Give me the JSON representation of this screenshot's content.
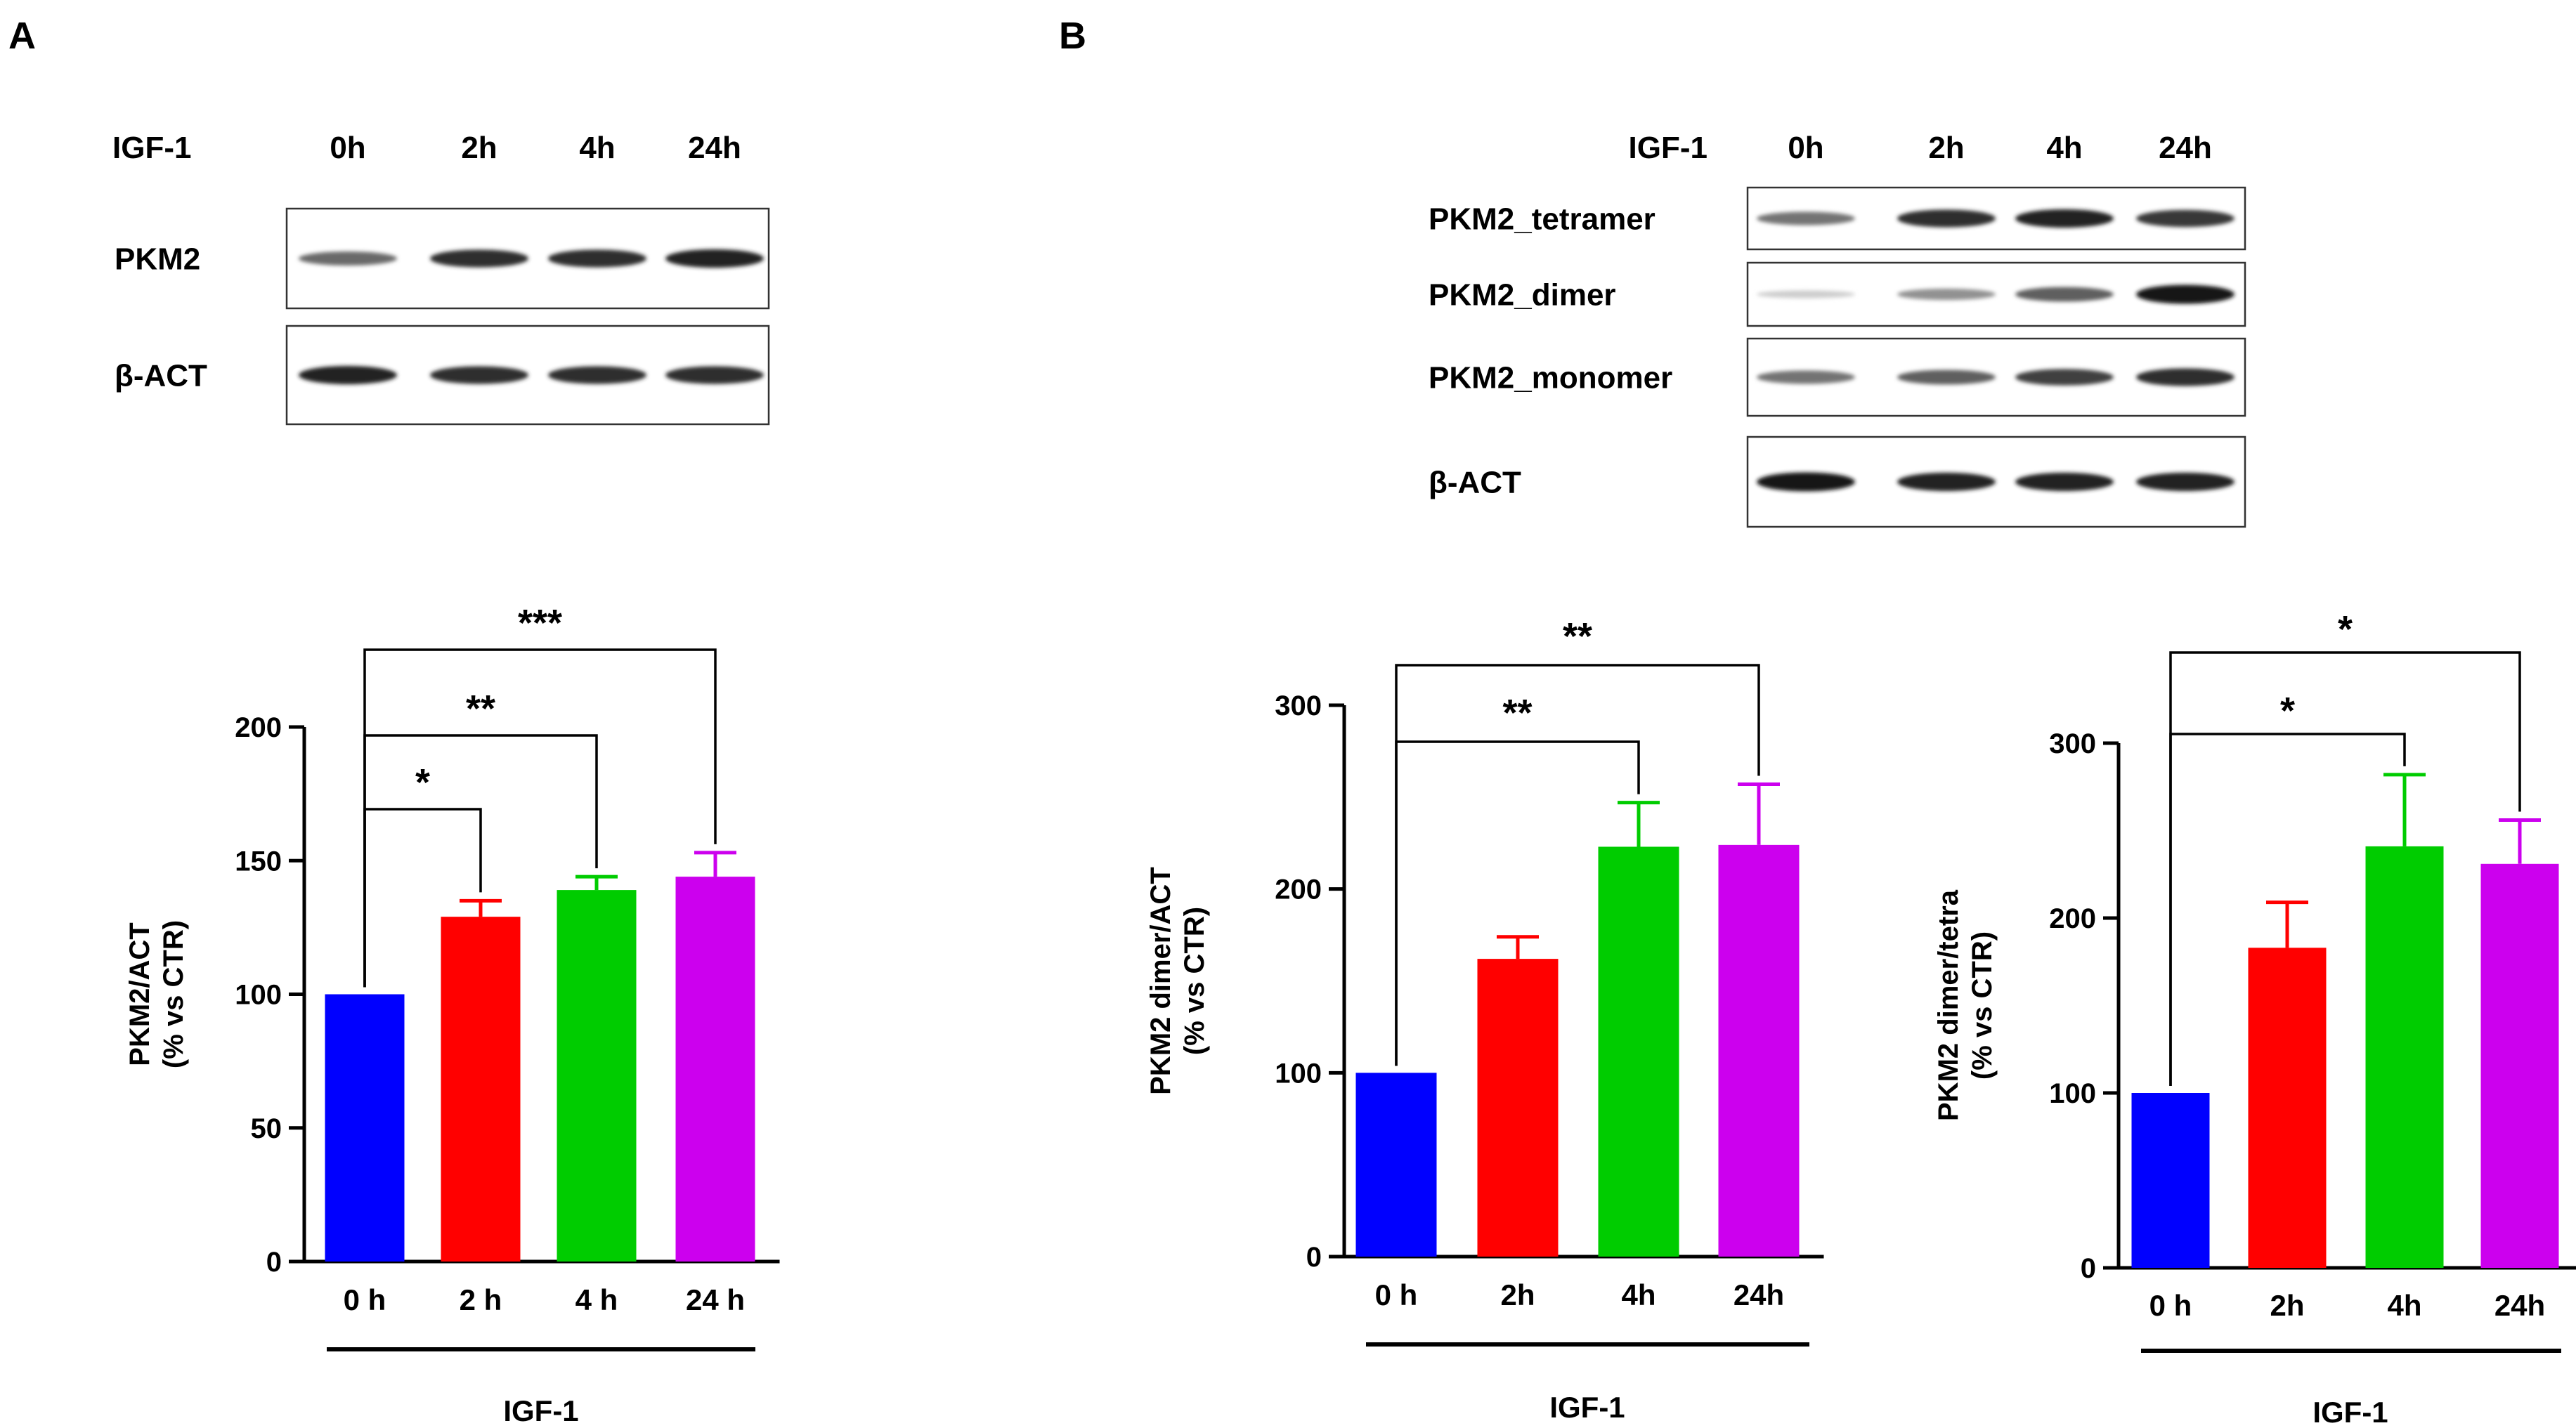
{
  "panels": {
    "A": "A",
    "B": "B"
  },
  "blot_a": {
    "treatment_label": "IGF-1",
    "timepoints": [
      "0h",
      "2h",
      "4h",
      "24h"
    ],
    "rows": [
      {
        "label": "PKM2",
        "band_strength": [
          0.55,
          0.85,
          0.85,
          0.9
        ]
      },
      {
        "label": "β-ACT",
        "band_strength": [
          0.9,
          0.85,
          0.85,
          0.85
        ]
      }
    ]
  },
  "blot_b": {
    "treatment_label": "IGF-1",
    "timepoints": [
      "0h",
      "2h",
      "4h",
      "24h"
    ],
    "rows": [
      {
        "label": "PKM2_tetramer",
        "band_strength": [
          0.5,
          0.85,
          0.9,
          0.8
        ]
      },
      {
        "label": "PKM2_dimer",
        "band_strength": [
          0.05,
          0.35,
          0.6,
          0.95
        ]
      },
      {
        "label": "PKM2_monomer",
        "band_strength": [
          0.5,
          0.6,
          0.75,
          0.85
        ]
      },
      {
        "label": "β-ACT",
        "band_strength": [
          0.95,
          0.9,
          0.9,
          0.9
        ]
      }
    ]
  },
  "chart_data": [
    {
      "type": "bar",
      "categories": [
        "0 h",
        "2 h",
        "4 h",
        "24 h"
      ],
      "values": [
        100,
        129,
        139,
        144
      ],
      "errors": [
        0,
        6,
        5,
        9
      ],
      "colors": [
        "#0000ff",
        "#ff0000",
        "#00cc00",
        "#cc00ee"
      ],
      "ylabel_lines": [
        "PKM2/ACT",
        "(% vs CTR)"
      ],
      "xlabel": "IGF-1",
      "ylim": [
        0,
        200
      ],
      "yticks": [
        0,
        50,
        100,
        150,
        200
      ],
      "significance": [
        {
          "from": 0,
          "to": 1,
          "label": "*"
        },
        {
          "from": 0,
          "to": 2,
          "label": "**"
        },
        {
          "from": 0,
          "to": 3,
          "label": "***"
        }
      ]
    },
    {
      "type": "bar",
      "categories": [
        "0 h",
        "2h",
        "4h",
        "24h"
      ],
      "values": [
        100,
        162,
        223,
        224
      ],
      "errors": [
        0,
        12,
        24,
        33
      ],
      "colors": [
        "#0000ff",
        "#ff0000",
        "#00cc00",
        "#cc00ee"
      ],
      "ylabel_lines": [
        "PKM2 dimer/ACT",
        "(% vs CTR)"
      ],
      "xlabel": "IGF-1",
      "ylim": [
        0,
        300
      ],
      "yticks": [
        0,
        100,
        200,
        300
      ],
      "significance": [
        {
          "from": 0,
          "to": 2,
          "label": "**"
        },
        {
          "from": 0,
          "to": 3,
          "label": "**"
        }
      ]
    },
    {
      "type": "bar",
      "categories": [
        "0 h",
        "2h",
        "4h",
        "24h"
      ],
      "values": [
        100,
        183,
        241,
        231
      ],
      "errors": [
        0,
        26,
        41,
        25
      ],
      "colors": [
        "#0000ff",
        "#ff0000",
        "#00cc00",
        "#cc00ee"
      ],
      "ylabel_lines": [
        "PKM2 dimer/tetra",
        "(% vs CTR)"
      ],
      "xlabel": "IGF-1",
      "ylim": [
        0,
        300
      ],
      "yticks": [
        0,
        100,
        200,
        300
      ],
      "significance": [
        {
          "from": 0,
          "to": 2,
          "label": "*"
        },
        {
          "from": 0,
          "to": 3,
          "label": "*"
        }
      ]
    }
  ]
}
